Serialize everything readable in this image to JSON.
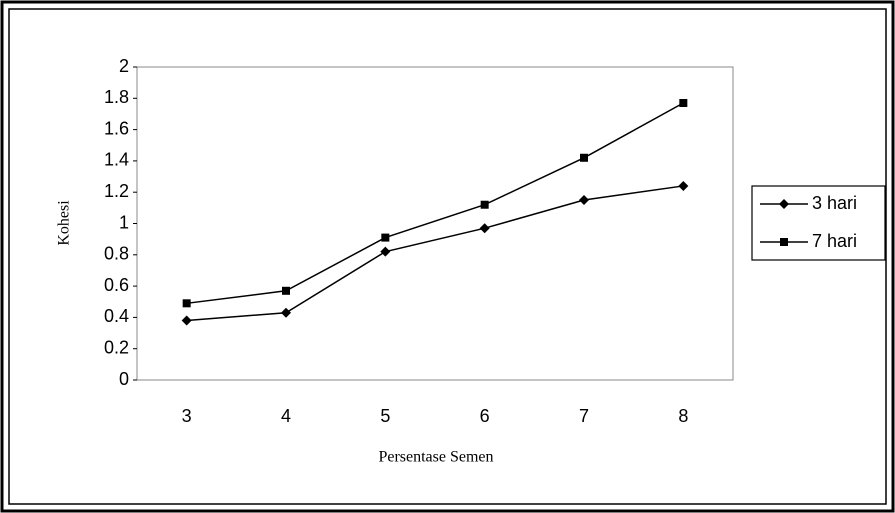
{
  "chart_data": {
    "type": "line",
    "x_label": "Persentase Semen",
    "y_label": "Kohesi",
    "categories": [
      "3",
      "4",
      "5",
      "6",
      "7",
      "8"
    ],
    "series": [
      {
        "name": "3 hari",
        "color": "#000000",
        "marker": "diamond",
        "values": [
          0.38,
          0.43,
          0.82,
          0.97,
          1.15,
          1.24
        ]
      },
      {
        "name": "7 hari",
        "color": "#000000",
        "marker": "square",
        "values": [
          0.49,
          0.57,
          0.91,
          1.12,
          1.42,
          1.77
        ]
      }
    ],
    "ylim": [
      0,
      2
    ],
    "yticks": [
      0,
      0.2,
      0.4,
      0.6,
      0.8,
      1,
      1.2,
      1.4,
      1.6,
      1.8,
      2
    ],
    "grid": false,
    "legend": "right"
  }
}
